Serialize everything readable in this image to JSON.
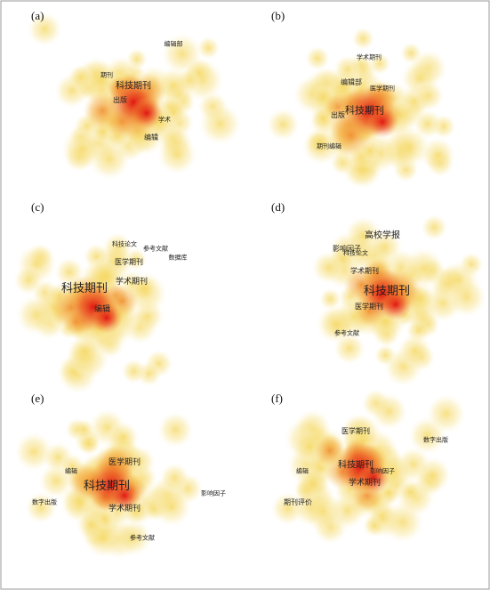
{
  "panels": [
    {
      "label": "(a)",
      "keywords": [
        "科技期刊",
        "编辑",
        "出版",
        "期刊",
        "学术",
        "编辑部"
      ]
    },
    {
      "label": "(b)",
      "keywords": [
        "科技期刊",
        "编辑部",
        "出版",
        "期刊编辑",
        "医学期刊",
        "学术期刊"
      ]
    },
    {
      "label": "(c)",
      "keywords": [
        "科技期刊",
        "编辑",
        "学术期刊",
        "医学期刊",
        "参考文献",
        "科技论文",
        "数据库"
      ]
    },
    {
      "label": "(d)",
      "keywords": [
        "科技期刊",
        "高校学报",
        "影响因子",
        "医学期刊",
        "学术期刊",
        "参考文献",
        "科技论文"
      ]
    },
    {
      "label": "(e)",
      "keywords": [
        "科技期刊",
        "医学期刊",
        "学术期刊",
        "影响因子",
        "编辑",
        "参考文献",
        "数字出版"
      ]
    },
    {
      "label": "(f)",
      "keywords": [
        "科技期刊",
        "学术期刊",
        "医学期刊",
        "期刊评价",
        "影响因子",
        "数字出版",
        "编辑"
      ]
    }
  ]
}
